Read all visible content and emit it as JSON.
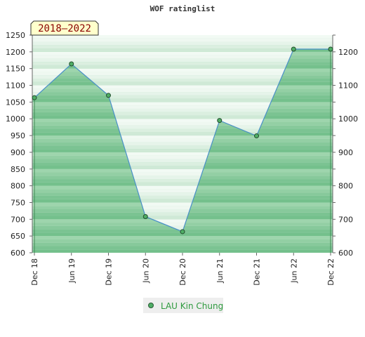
{
  "chart_data": {
    "type": "area",
    "title": "WOF ratinglist",
    "badge": "2018–2022",
    "x": [
      "Dec 18",
      "Jun 19",
      "Dec 19",
      "Jun 20",
      "Dec 20",
      "Jun 21",
      "Dec 21",
      "Jun 22",
      "Dec 22"
    ],
    "series": [
      {
        "name": "LAU Kin Chung",
        "values": [
          1063,
          1164,
          1070,
          708,
          663,
          995,
          949,
          1208,
          1208
        ]
      }
    ],
    "y_left": {
      "min": 600,
      "max": 1250,
      "ticks": [
        600,
        650,
        700,
        750,
        800,
        850,
        900,
        950,
        1000,
        1050,
        1100,
        1150,
        1200,
        1250
      ]
    },
    "y_right": {
      "min": 600,
      "max": 1250,
      "ticks": [
        600,
        700,
        800,
        900,
        1000,
        1100,
        1200
      ]
    },
    "legend_position": "bottom-center",
    "colors": {
      "fill": "#8ccf9f",
      "line": "#4a90c8",
      "marker": "#4fae66",
      "band_dark": "#7cc495",
      "band_mid": "#b5e0c0",
      "band_light": "#f2faf4",
      "badge_bg": "#ffffcc"
    }
  }
}
